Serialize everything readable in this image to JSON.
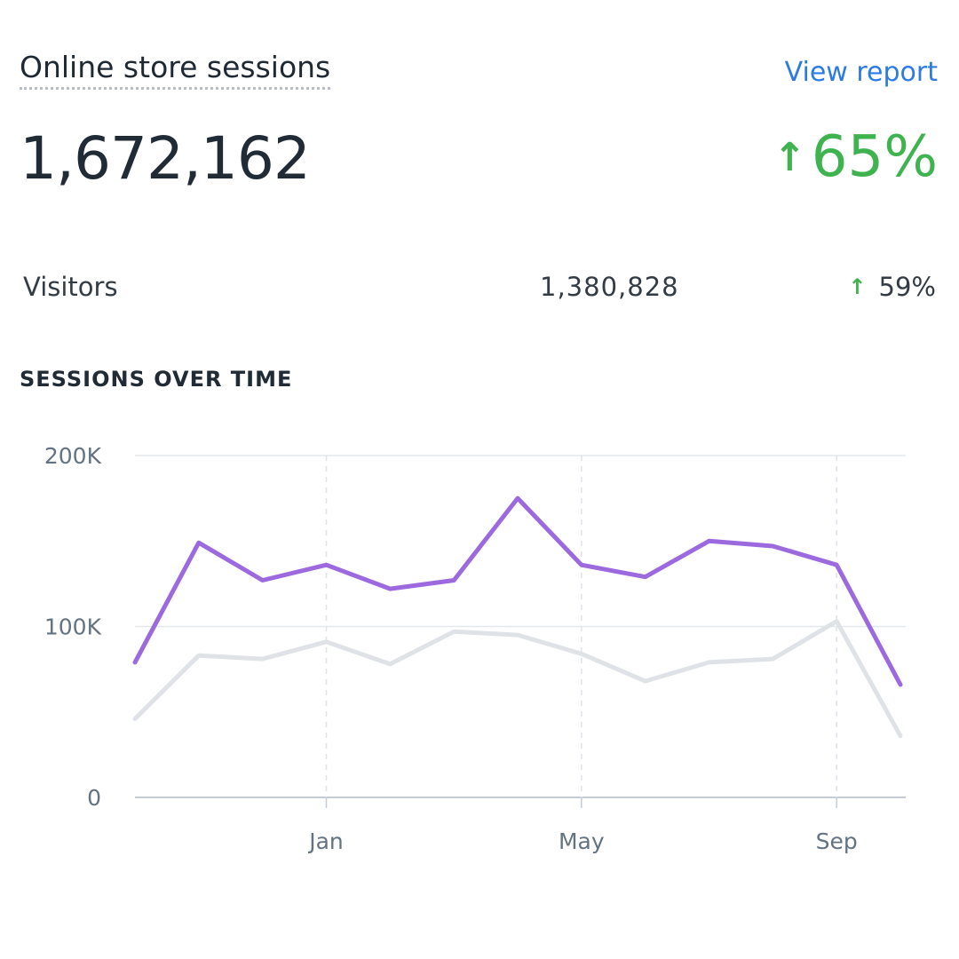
{
  "card": {
    "title": "Online store sessions",
    "view_report": "View report",
    "total": "1,672,162",
    "change_arrow": "↑",
    "change": "65%"
  },
  "visitors": {
    "label": "Visitors",
    "value": "1,380,828",
    "change_arrow": "↑",
    "change": "59%"
  },
  "section_heading": "SESSIONS OVER TIME",
  "colors": {
    "primary_series": "#9c6ade",
    "comparison_series": "#dfe3e8",
    "positive": "#3fb34f",
    "link": "#2c7be5"
  },
  "chart_data": {
    "type": "line",
    "title": "",
    "xlabel": "",
    "ylabel": "",
    "ylim": [
      0,
      200000
    ],
    "y_ticks": [
      {
        "value": 0,
        "label": "0"
      },
      {
        "value": 100000,
        "label": "100K"
      },
      {
        "value": 200000,
        "label": "200K"
      }
    ],
    "x_ticks": [
      {
        "index": 3,
        "label": "Jan"
      },
      {
        "index": 7,
        "label": "May"
      },
      {
        "index": 11,
        "label": "Sep"
      }
    ],
    "grid": true,
    "series": [
      {
        "values": [
          79000,
          149000,
          127000,
          136000,
          122000,
          127000,
          175000,
          136000,
          129000,
          150000,
          147000,
          136000,
          66000
        ]
      },
      {
        "values": [
          46000,
          83000,
          81000,
          91000,
          78000,
          97000,
          95000,
          84000,
          68000,
          79000,
          81000,
          103000,
          36000
        ]
      }
    ]
  }
}
